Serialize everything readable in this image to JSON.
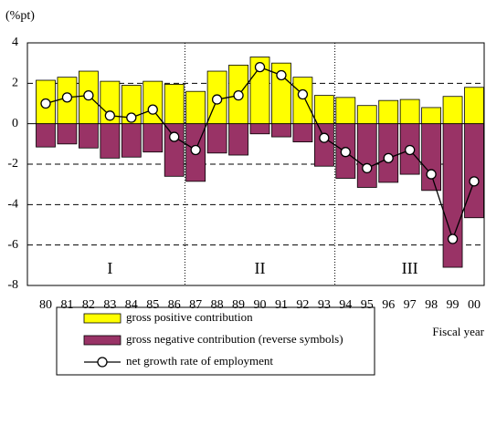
{
  "chart_data": {
    "type": "bar",
    "y_label": "(%pt)",
    "x_label": "Fiscal year",
    "categories": [
      "80",
      "81",
      "82",
      "83",
      "84",
      "85",
      "86",
      "87",
      "88",
      "89",
      "90",
      "91",
      "92",
      "93",
      "94",
      "95",
      "96",
      "97",
      "98",
      "99",
      "00"
    ],
    "series": [
      {
        "name": "gross positive contribution",
        "type": "bar",
        "color": "#ffff00",
        "values": [
          2.15,
          2.3,
          2.6,
          2.1,
          1.9,
          2.1,
          1.95,
          1.6,
          2.6,
          2.9,
          3.3,
          3.0,
          2.3,
          1.4,
          1.3,
          0.9,
          1.15,
          1.2,
          0.8,
          1.35,
          1.8
        ]
      },
      {
        "name": "gross negative contribution (reverse symbols)",
        "type": "bar",
        "color": "#993366",
        "values": [
          -1.15,
          -1.0,
          -1.2,
          -1.7,
          -1.65,
          -1.4,
          -2.6,
          -2.85,
          -1.45,
          -1.55,
          -0.5,
          -0.65,
          -0.9,
          -2.1,
          -2.7,
          -3.15,
          -2.9,
          -2.5,
          -3.3,
          -7.1,
          -4.65
        ]
      },
      {
        "name": "net growth rate of employment",
        "type": "line",
        "color": "#000000",
        "values": [
          1.0,
          1.3,
          1.4,
          0.4,
          0.3,
          0.7,
          -0.65,
          -1.3,
          1.2,
          1.4,
          2.8,
          2.4,
          1.45,
          -0.7,
          -1.4,
          -2.2,
          -1.7,
          -1.3,
          -2.5,
          -5.7,
          -2.85
        ]
      }
    ],
    "annotations": [
      "I",
      "II",
      "III"
    ],
    "ylim": [
      -8,
      4
    ],
    "yticks": [
      -8,
      -6,
      -4,
      -2,
      0,
      2,
      4
    ],
    "grid": true
  }
}
